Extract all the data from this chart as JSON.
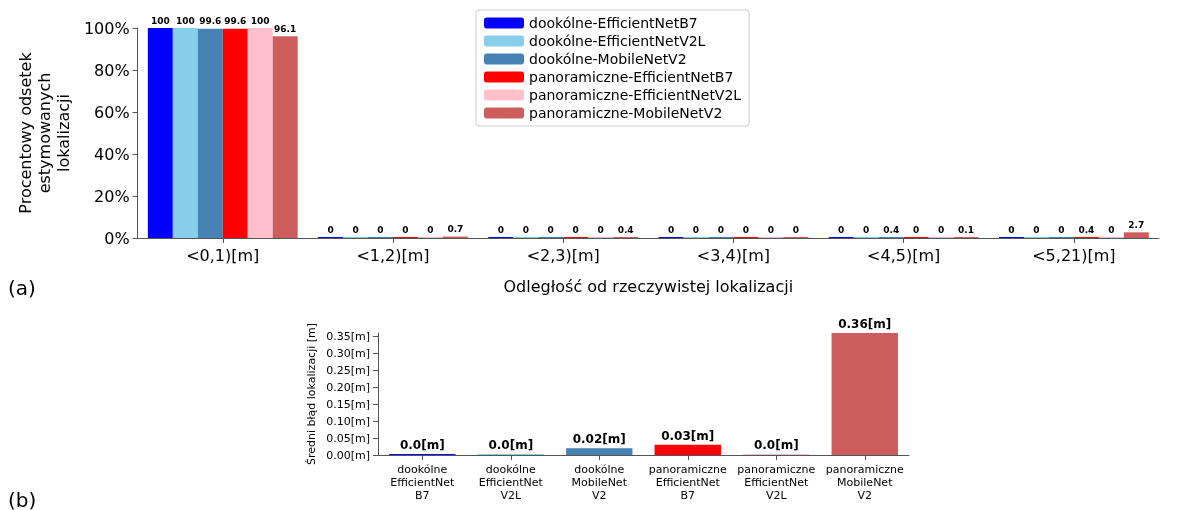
{
  "chart_data": [
    {
      "type": "bar",
      "xlabel": "Odległość od rzeczywistej lokalizacji",
      "ylabel": "Procentowy odsetek\nestymowanych\nlokalizacji",
      "categories": [
        "<0,1)[m]",
        "<1,2)[m]",
        "<2,3)[m]",
        "<3,4)[m]",
        "<4,5)[m]",
        "<5,21)[m]"
      ],
      "series": [
        {
          "name": "dookólne-EfficientNetB7",
          "color": "#0000ff",
          "values": [
            100,
            0,
            0,
            0,
            0,
            0
          ]
        },
        {
          "name": "dookólne-EfficientNetV2L",
          "color": "#87ceeb",
          "values": [
            100,
            0,
            0,
            0,
            0,
            0
          ]
        },
        {
          "name": "dookólne-MobileNetV2",
          "color": "#4682b4",
          "values": [
            99.6,
            0,
            0,
            0,
            0.4,
            0
          ]
        },
        {
          "name": "panoramiczne-EfficientNetB7",
          "color": "#ff0000",
          "values": [
            99.6,
            0,
            0,
            0,
            0,
            0.4
          ]
        },
        {
          "name": "panoramiczne-EfficientNetV2L",
          "color": "#ffc0cb",
          "values": [
            100,
            0,
            0,
            0,
            0,
            0
          ]
        },
        {
          "name": "panoramiczne-MobileNetV2",
          "color": "#cd5c5c",
          "values": [
            96.1,
            0.7,
            0.4,
            0,
            0.1,
            2.7
          ]
        }
      ],
      "ylim": [
        0,
        100
      ],
      "yticks": [
        {
          "value": 0,
          "label": "0%"
        },
        {
          "value": 20,
          "label": "20%"
        },
        {
          "value": 40,
          "label": "40%"
        },
        {
          "value": 60,
          "label": "60%"
        },
        {
          "value": 80,
          "label": "80%"
        },
        {
          "value": 100,
          "label": "100%"
        }
      ],
      "data_labels": true,
      "legend": "top",
      "grid": false,
      "annotations": [
        "(a)"
      ]
    },
    {
      "type": "bar",
      "ylabel": "Średni błąd lokalizacji [m]",
      "categories": [
        "dookólne\nEfficientNet\nB7",
        "dookólne\nEfficientNet\nV2L",
        "dookólne\nMobileNet\nV2",
        "panoramiczne\nEfficientNet\nB7",
        "panoramiczne\nEfficientNet\nV2L",
        "panoramiczne\nMobileNet\nV2"
      ],
      "values": [
        0.0,
        0.0,
        0.02,
        0.03,
        0.0,
        0.36
      ],
      "colors": [
        "#0000ff",
        "#87ceeb",
        "#4682b4",
        "#ff0000",
        "#ffc0cb",
        "#cd5c5c"
      ],
      "value_labels": [
        "0.0[m]",
        "0.0[m]",
        "0.02[m]",
        "0.03[m]",
        "0.0[m]",
        "0.36[m]"
      ],
      "ylim": [
        0,
        0.36
      ],
      "yticks": [
        {
          "value": 0,
          "label": "0.00[m]"
        },
        {
          "value": 0.05,
          "label": "0.05[m]"
        },
        {
          "value": 0.1,
          "label": "0.10[m]"
        },
        {
          "value": 0.15,
          "label": "0.15[m]"
        },
        {
          "value": 0.2,
          "label": "0.20[m]"
        },
        {
          "value": 0.25,
          "label": "0.25[m]"
        },
        {
          "value": 0.3,
          "label": "0.30[m]"
        },
        {
          "value": 0.35,
          "label": "0.35[m]"
        }
      ],
      "grid": false,
      "annotations": [
        "(b)"
      ]
    }
  ]
}
